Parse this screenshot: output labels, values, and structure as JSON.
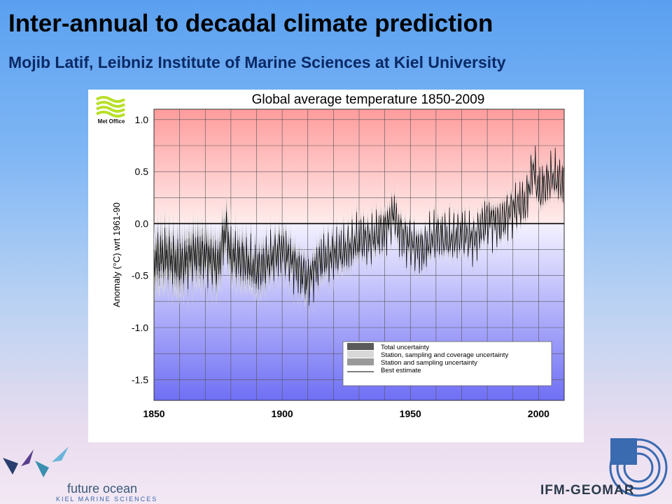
{
  "slide": {
    "title": "Inter-annual to decadal climate prediction",
    "subtitle": "Mojib Latif, Leibniz Institute of Marine Sciences at Kiel University"
  },
  "logos": {
    "met_office": "Met Office",
    "future_ocean": "future ocean",
    "future_ocean_sub": "KIEL MARINE SCIENCES",
    "ifm_geomar": "IFM-GEOMAR"
  },
  "chart_data": {
    "type": "line",
    "title": "Global average temperature 1850-2009",
    "ylabel": "Anomaly (°C) wrt 1961-90",
    "xlabel": "",
    "xlim": [
      1850,
      2010
    ],
    "ylim": [
      -1.7,
      1.1
    ],
    "x_ticks": [
      1850,
      1900,
      1950,
      2000
    ],
    "x_tick_labels": [
      "1850",
      "1900",
      "1950",
      "2000"
    ],
    "y_ticks": [
      1.0,
      0.5,
      0.0,
      -0.5,
      -1.0,
      -1.5
    ],
    "y_tick_labels": [
      "1.0",
      "0.5",
      "0.0",
      "-0.5",
      "-1.0",
      "-1.5"
    ],
    "grid": true,
    "legend_position": "bottom-right",
    "legend": [
      {
        "label": "Total uncertainty",
        "color": "#5a5a5a"
      },
      {
        "label": "Station, sampling and coverage uncertainty",
        "color": "#d8d8d8"
      },
      {
        "label": "Station and sampling uncertainty",
        "color": "#9a9a9a"
      },
      {
        "label": "Best estimate",
        "color": "#000000"
      }
    ],
    "colors": {
      "warm_band": "#ff9c9c",
      "cool_band": "#6f6ff5",
      "best_estimate": "#000000"
    },
    "best_estimate_series": {
      "name": "Best estimate",
      "x": [
        1850,
        1855,
        1860,
        1865,
        1870,
        1875,
        1878,
        1880,
        1885,
        1890,
        1895,
        1900,
        1905,
        1910,
        1915,
        1920,
        1925,
        1930,
        1935,
        1940,
        1944,
        1945,
        1950,
        1955,
        1960,
        1965,
        1970,
        1975,
        1980,
        1985,
        1990,
        1995,
        1998,
        2000,
        2005,
        2009
      ],
      "y": [
        -0.35,
        -0.3,
        -0.4,
        -0.3,
        -0.3,
        -0.4,
        -0.05,
        -0.3,
        -0.35,
        -0.45,
        -0.35,
        -0.25,
        -0.4,
        -0.55,
        -0.35,
        -0.3,
        -0.25,
        -0.15,
        -0.15,
        -0.05,
        0.1,
        -0.05,
        -0.2,
        -0.25,
        -0.1,
        -0.15,
        -0.1,
        -0.15,
        0.05,
        0.0,
        0.15,
        0.2,
        0.55,
        0.3,
        0.45,
        0.4
      ]
    },
    "uncertainty_halfwidth": {
      "x": [
        1850,
        1880,
        1900,
        1950,
        2009
      ],
      "y": [
        0.25,
        0.2,
        0.15,
        0.1,
        0.08
      ]
    }
  }
}
